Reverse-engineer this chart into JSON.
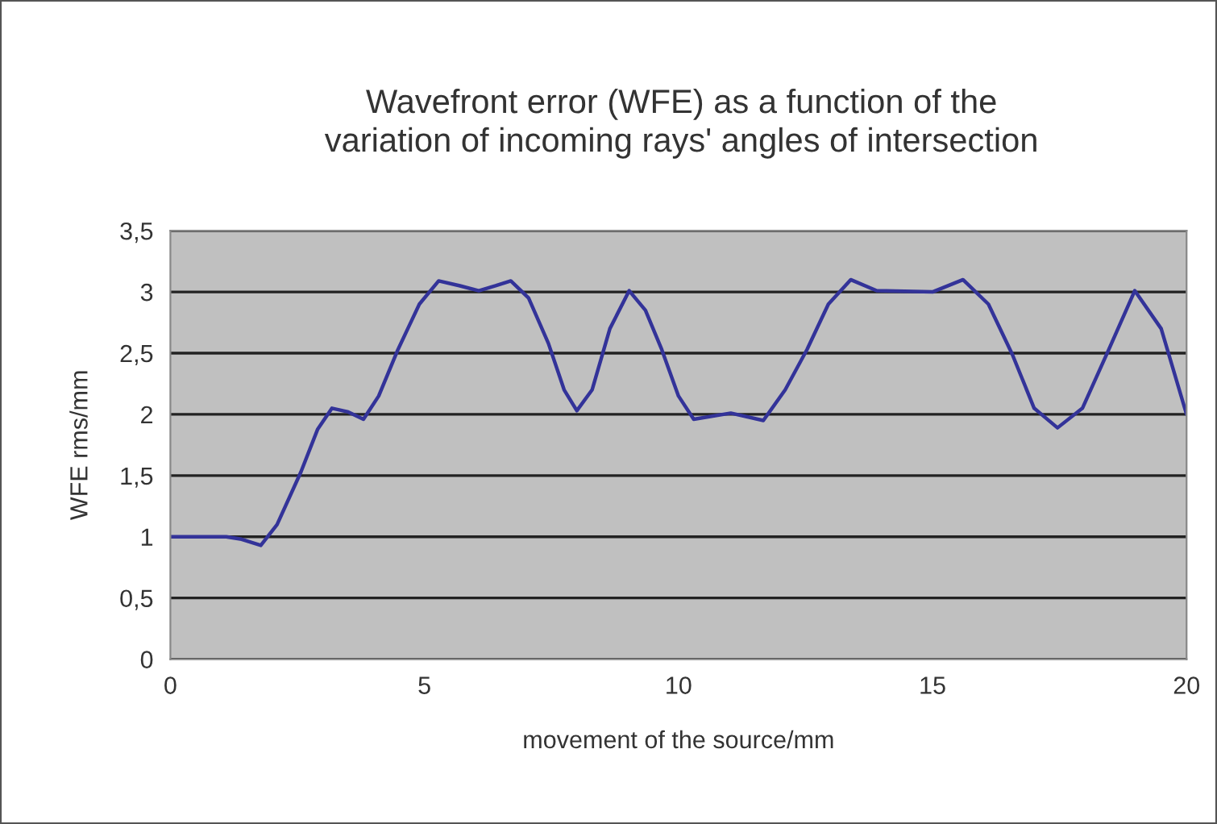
{
  "chart_data": {
    "type": "line",
    "title": "Wavefront error (WFE) as a function of the\nvariation of incoming rays' angles of intersection",
    "xlabel": "movement of the source/mm",
    "ylabel": "WFE rms/mm",
    "series": [
      {
        "color": "#333399",
        "x": [
          0,
          0.5,
          1.1,
          1.4,
          1.78,
          2.1,
          2.57,
          2.9,
          3.18,
          3.5,
          3.8,
          4.1,
          4.48,
          4.9,
          5.28,
          5.7,
          6.07,
          6.4,
          6.7,
          7.05,
          7.44,
          7.75,
          8.0,
          8.3,
          8.65,
          9.03,
          9.35,
          9.67,
          10.0,
          10.3,
          11.03,
          11.67,
          12.1,
          12.53,
          12.95,
          13.39,
          13.9,
          15.0,
          15.6,
          16.1,
          16.57,
          17.0,
          17.46,
          17.95,
          18.47,
          18.98,
          19.5,
          20
        ],
        "values": [
          1,
          1,
          1,
          0.98,
          0.93,
          1.1,
          1.53,
          1.88,
          2.05,
          2.02,
          1.96,
          2.15,
          2.53,
          2.9,
          3.09,
          3.05,
          3.01,
          3.05,
          3.09,
          2.95,
          2.58,
          2.2,
          2.03,
          2.2,
          2.7,
          3.01,
          2.85,
          2.53,
          2.15,
          1.96,
          2.01,
          1.95,
          2.2,
          2.53,
          2.9,
          3.1,
          3.01,
          3.0,
          3.1,
          2.9,
          2.49,
          2.05,
          1.89,
          2.05,
          2.53,
          3.01,
          2.7,
          2.0
        ]
      }
    ],
    "xlim": [
      0,
      20
    ],
    "xticks": [
      0,
      5,
      10,
      15,
      20
    ],
    "ylim": [
      0,
      3.5
    ],
    "yticks": [
      0,
      {
        "value": 0.5,
        "label": "0,5"
      },
      1,
      {
        "value": 1.5,
        "label": "1,5"
      },
      2,
      {
        "value": 2.5,
        "label": "2,5"
      },
      3,
      {
        "value": 3.5,
        "label": "3,5"
      }
    ],
    "grid": "y"
  }
}
